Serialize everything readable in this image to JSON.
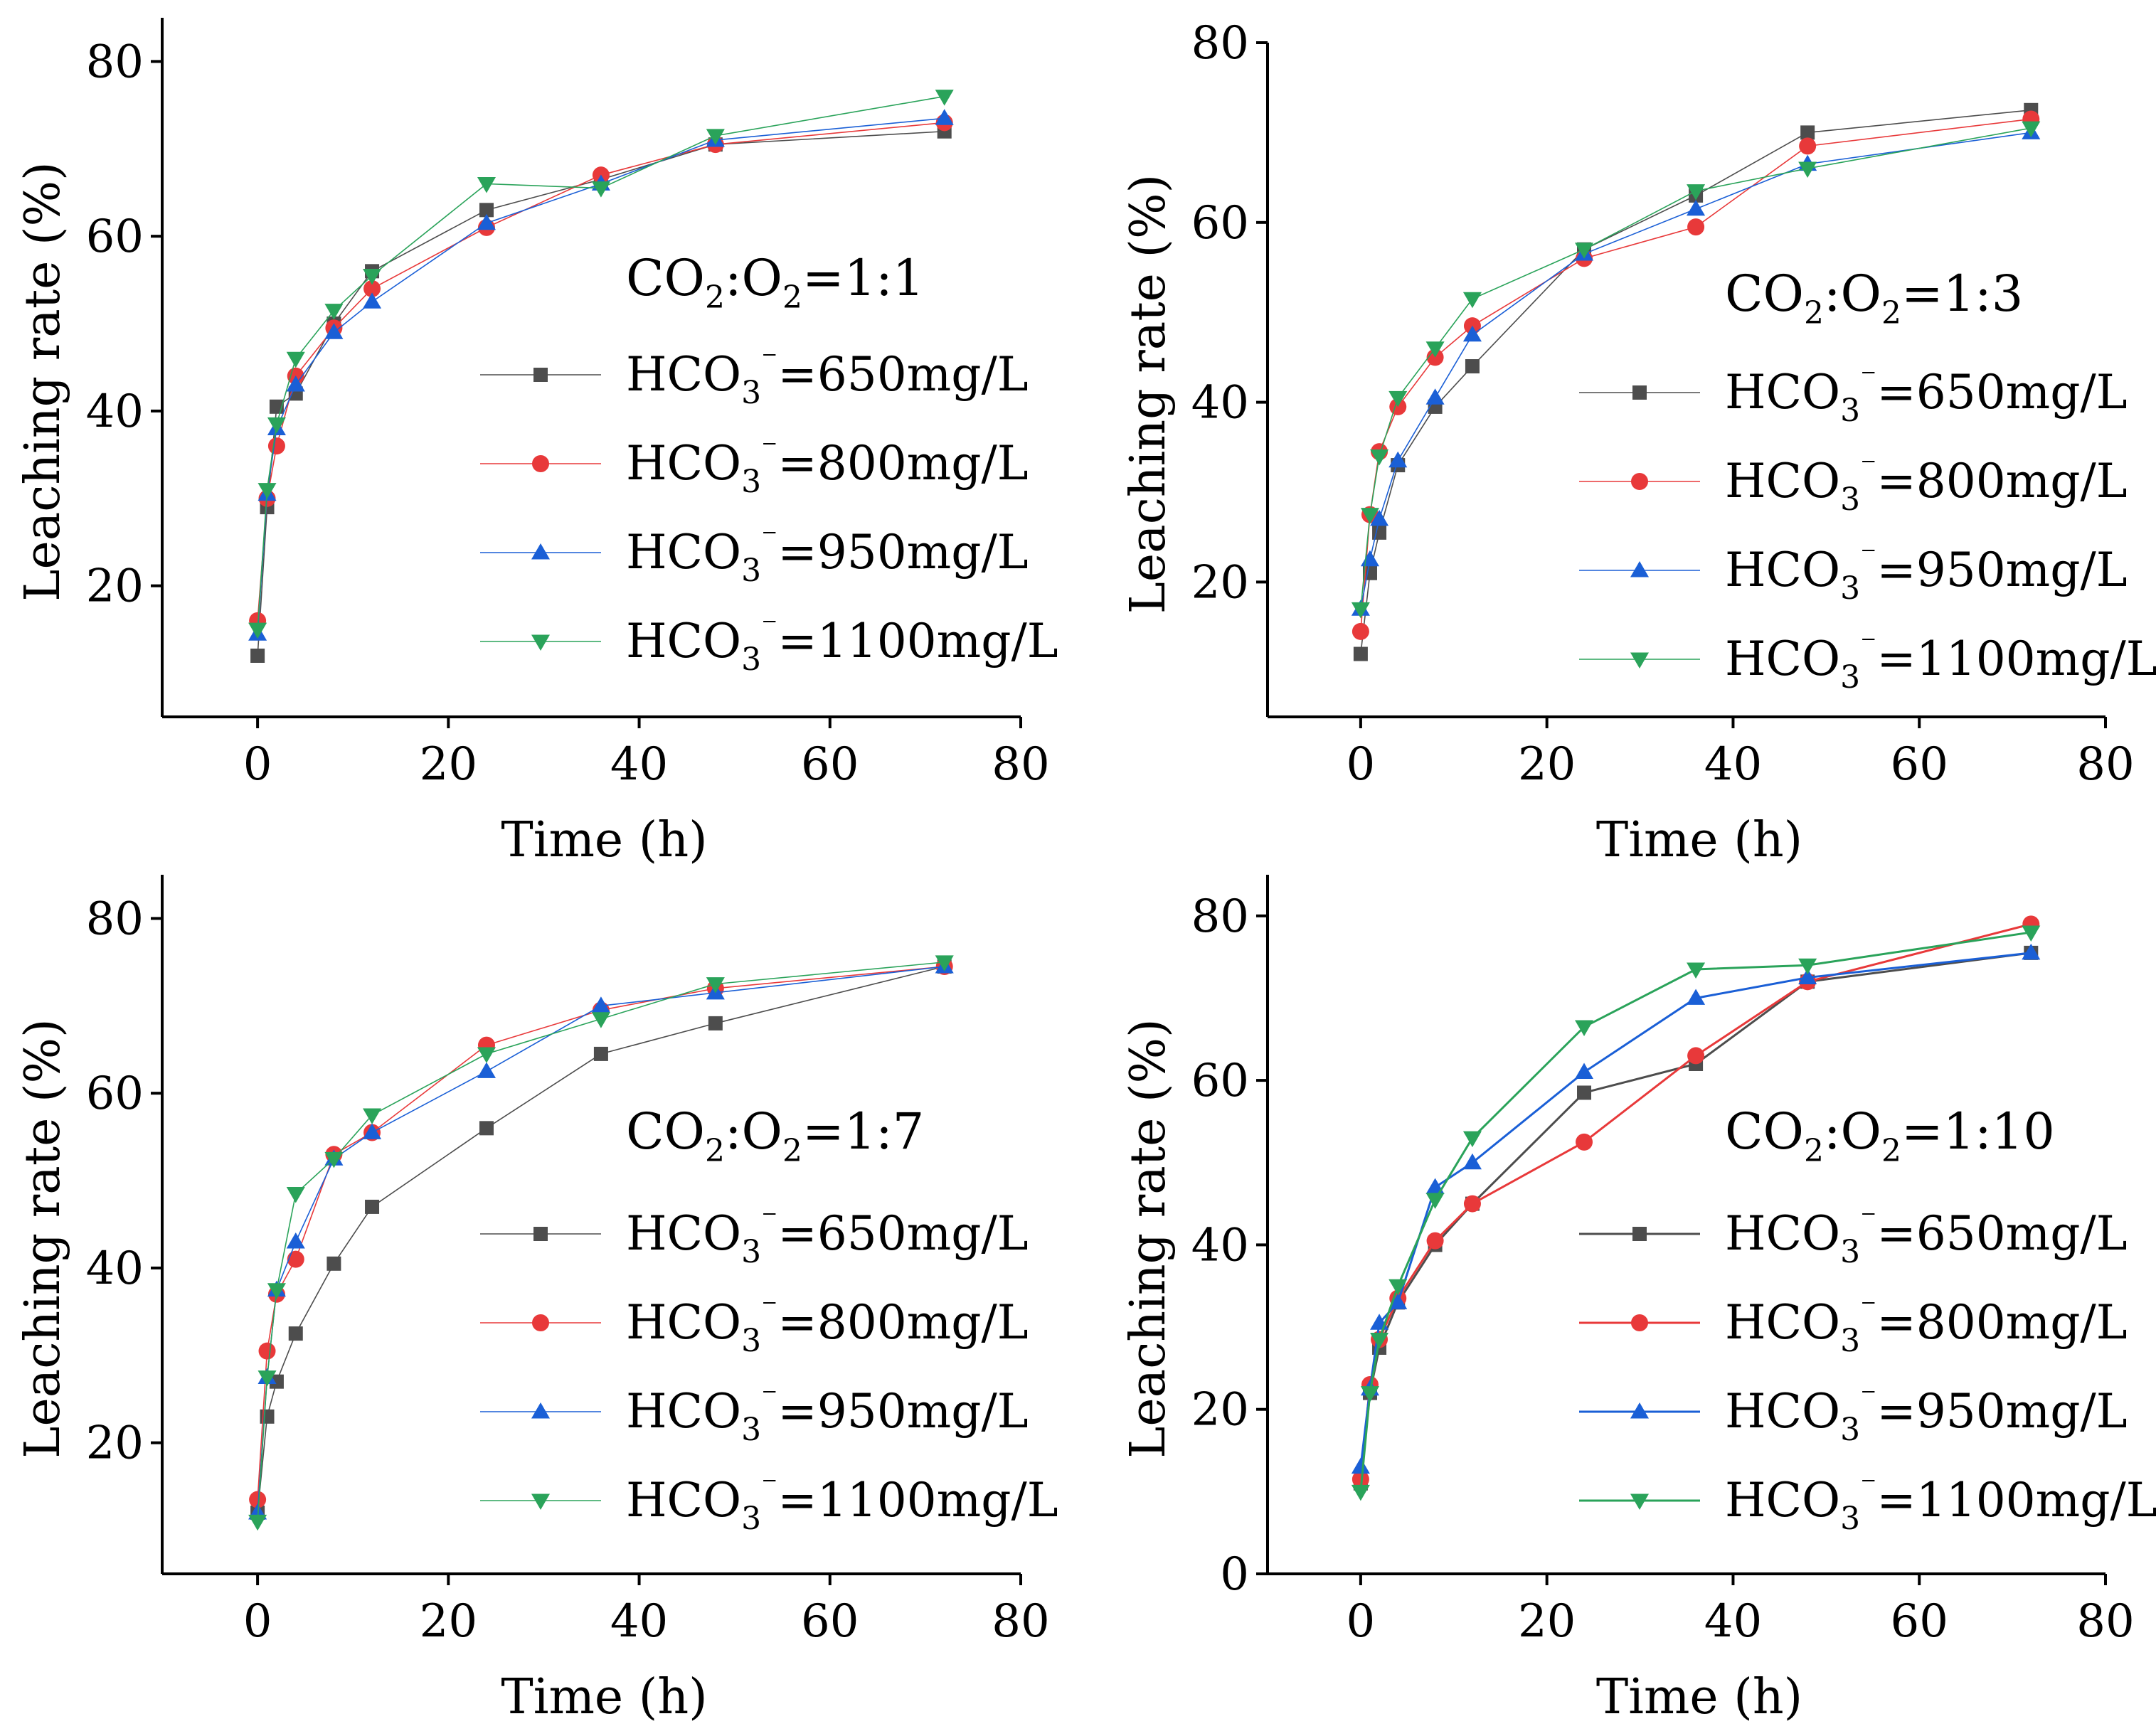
{
  "colors": {
    "650": "#4d4d4d",
    "800": "#e8393a",
    "950": "#1a5fd6",
    "1100": "#2aa35a"
  },
  "chart_data": [
    {
      "type": "line",
      "title_parts": [
        "CO",
        "2",
        ":O",
        "2",
        "=1:1"
      ],
      "xlabel": "Time (h)",
      "ylabel": "Leaching rate (%)",
      "xlim": [
        -10,
        80
      ],
      "ylim": [
        5,
        85
      ],
      "xticks": [
        0,
        20,
        40,
        60,
        80
      ],
      "yticks": [
        20,
        40,
        60,
        80
      ],
      "x": [
        0,
        1,
        2,
        4,
        8,
        12,
        24,
        36,
        48,
        72
      ],
      "series": [
        {
          "name_parts": [
            "HCO",
            "3",
            "⁻",
            "=650mg/L"
          ],
          "color_key": "650",
          "marker": "square",
          "values": [
            12,
            29,
            40.5,
            42,
            50,
            56,
            63,
            66.5,
            70.5,
            72
          ]
        },
        {
          "name_parts": [
            "HCO",
            "3",
            "⁻",
            "=800mg/L"
          ],
          "color_key": "800",
          "marker": "circle",
          "values": [
            16,
            30,
            36,
            44,
            49.5,
            54,
            61,
            67,
            70.5,
            73
          ]
        },
        {
          "name_parts": [
            "HCO",
            "3",
            "⁻",
            "=950mg/L"
          ],
          "color_key": "950",
          "marker": "triangle-up",
          "values": [
            14.5,
            30.5,
            38,
            43,
            49,
            52.5,
            61.5,
            66,
            71,
            73.5
          ]
        },
        {
          "name_parts": [
            "HCO",
            "3",
            "⁻",
            "=1100mg/L"
          ],
          "color_key": "1100",
          "marker": "triangle-down",
          "values": [
            15,
            31,
            38.5,
            46,
            51.5,
            55.5,
            66,
            65.5,
            71.5,
            76
          ]
        }
      ]
    },
    {
      "type": "line",
      "title_parts": [
        "CO",
        "2",
        ":O",
        "2",
        "=1:3"
      ],
      "xlabel": "Time (h)",
      "ylabel": "Leaching rate (%)",
      "xlim": [
        -10,
        80
      ],
      "ylim": [
        5,
        80
      ],
      "xticks": [
        0,
        20,
        40,
        60,
        80
      ],
      "yticks": [
        20,
        40,
        60,
        80
      ],
      "x": [
        0,
        1,
        2,
        4,
        8,
        12,
        24,
        36,
        48,
        72
      ],
      "series": [
        {
          "name_parts": [
            "HCO",
            "3",
            "⁻",
            "=650mg/L"
          ],
          "color_key": "650",
          "marker": "square",
          "values": [
            12,
            21,
            25.5,
            33,
            39.5,
            44,
            57,
            63,
            70,
            72.5
          ]
        },
        {
          "name_parts": [
            "HCO",
            "3",
            "⁻",
            "=800mg/L"
          ],
          "color_key": "800",
          "marker": "circle",
          "values": [
            14.5,
            27.5,
            34.5,
            39.5,
            45,
            48.5,
            56,
            59.5,
            68.5,
            71.5
          ]
        },
        {
          "name_parts": [
            "HCO",
            "3",
            "⁻",
            "=950mg/L"
          ],
          "color_key": "950",
          "marker": "triangle-up",
          "values": [
            17,
            22.5,
            27,
            33.5,
            40.5,
            47.5,
            56.5,
            61.5,
            66.5,
            70
          ]
        },
        {
          "name_parts": [
            "HCO",
            "3",
            "⁻",
            "=1100mg/L"
          ],
          "color_key": "1100",
          "marker": "triangle-down",
          "values": [
            17,
            27.5,
            34,
            40.5,
            46,
            51.5,
            57,
            63.5,
            66,
            70.5
          ]
        }
      ]
    },
    {
      "type": "line",
      "title_parts": [
        "CO",
        "2",
        ":O",
        "2",
        "=1:7"
      ],
      "xlabel": "Time (h)",
      "ylabel": "Leaching rate (%)",
      "xlim": [
        -10,
        80
      ],
      "ylim": [
        5,
        85
      ],
      "xticks": [
        0,
        20,
        40,
        60,
        80
      ],
      "yticks": [
        20,
        40,
        60,
        80
      ],
      "x": [
        0,
        1,
        2,
        4,
        8,
        12,
        24,
        36,
        48,
        72
      ],
      "series": [
        {
          "name_parts": [
            "HCO",
            "3",
            "⁻",
            "=650mg/L"
          ],
          "color_key": "650",
          "marker": "square",
          "values": [
            12,
            23,
            27,
            32.5,
            40.5,
            47,
            56,
            64.5,
            68,
            74.5
          ]
        },
        {
          "name_parts": [
            "HCO",
            "3",
            "⁻",
            "=800mg/L"
          ],
          "color_key": "800",
          "marker": "circle",
          "values": [
            13.5,
            30.5,
            37,
            41,
            53,
            55.5,
            65.5,
            69.5,
            72,
            74.5
          ]
        },
        {
          "name_parts": [
            "HCO",
            "3",
            "⁻",
            "=950mg/L"
          ],
          "color_key": "950",
          "marker": "triangle-up",
          "values": [
            12,
            27.5,
            37.5,
            43,
            52.5,
            55.5,
            62.5,
            70,
            71.5,
            74.5
          ]
        },
        {
          "name_parts": [
            "HCO",
            "3",
            "⁻",
            "=1100mg/L"
          ],
          "color_key": "1100",
          "marker": "triangle-down",
          "values": [
            11,
            27.5,
            37.5,
            48.5,
            52.5,
            57.5,
            64.5,
            68.5,
            72.5,
            75
          ]
        }
      ]
    },
    {
      "type": "line",
      "title_parts": [
        "CO",
        "2",
        ":O",
        "2",
        "=1:10"
      ],
      "xlabel": "Time (h)",
      "ylabel": "Leaching rate (%)",
      "xlim": [
        -10,
        80
      ],
      "ylim": [
        0,
        85
      ],
      "xticks": [
        0,
        20,
        40,
        60,
        80
      ],
      "yticks": [
        0,
        20,
        40,
        60,
        80
      ],
      "x": [
        0,
        1,
        2,
        4,
        8,
        12,
        24,
        36,
        48,
        72
      ],
      "series": [
        {
          "name_parts": [
            "HCO",
            "3",
            "⁻",
            "=650mg/L"
          ],
          "color_key": "650",
          "marker": "square",
          "values": [
            11,
            22,
            27.5,
            33,
            40,
            45,
            58.5,
            62,
            72,
            75.5
          ]
        },
        {
          "name_parts": [
            "HCO",
            "3",
            "⁻",
            "=800mg/L"
          ],
          "color_key": "800",
          "marker": "circle",
          "values": [
            11.5,
            23,
            28.5,
            33.5,
            40.5,
            45,
            52.5,
            63,
            72,
            79
          ]
        },
        {
          "name_parts": [
            "HCO",
            "3",
            "⁻",
            "=950mg/L"
          ],
          "color_key": "950",
          "marker": "triangle-up",
          "values": [
            13,
            22.5,
            30.5,
            33,
            47,
            50,
            61,
            70,
            72.5,
            75.5
          ]
        },
        {
          "name_parts": [
            "HCO",
            "3",
            "⁻",
            "=1100mg/L"
          ],
          "color_key": "1100",
          "marker": "triangle-down",
          "values": [
            10,
            22,
            28.5,
            35,
            45.5,
            53,
            66.5,
            73.5,
            74,
            78
          ]
        }
      ]
    }
  ]
}
